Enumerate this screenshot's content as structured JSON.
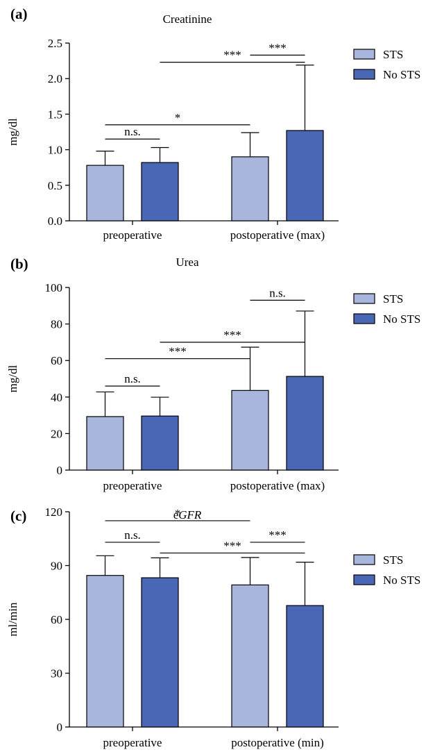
{
  "chart_data": [
    {
      "type": "bar",
      "panel_label": "(a)",
      "title": "Creatinine",
      "ylabel": "mg/dl",
      "ylim": [
        0,
        2.5
      ],
      "yticks": [
        "0.0",
        "0.5",
        "1.0",
        "1.5",
        "2.0",
        "2.5"
      ],
      "categories": [
        "preoperative",
        "postoperative (max)"
      ],
      "series": [
        {
          "name": "STS",
          "color": "#a8b6de",
          "values": [
            0.78,
            0.9
          ],
          "error": [
            0.2,
            0.34
          ]
        },
        {
          "name": "No STS",
          "color": "#4a67b6",
          "values": [
            0.82,
            1.27
          ],
          "error": [
            0.21,
            0.92
          ]
        }
      ],
      "legend_position": "top-right",
      "annotations": [
        {
          "label": "n.s.",
          "from": [
            0,
            0
          ],
          "to": [
            0,
            1
          ],
          "y": 1.15
        },
        {
          "label": "*",
          "from": [
            0,
            0
          ],
          "to": [
            1,
            0
          ],
          "y": 1.35
        },
        {
          "label": "***",
          "from": [
            0,
            1
          ],
          "to": [
            1,
            1
          ],
          "y": 2.23
        },
        {
          "label": "***",
          "from": [
            1,
            0
          ],
          "to": [
            1,
            1
          ],
          "y": 2.33
        }
      ]
    },
    {
      "type": "bar",
      "panel_label": "(b)",
      "title": "Urea",
      "ylabel": "mg/dl",
      "ylim": [
        0,
        100
      ],
      "yticks": [
        "0",
        "20",
        "40",
        "60",
        "80",
        "100"
      ],
      "categories": [
        "preoperative",
        "postoperative (max)"
      ],
      "series": [
        {
          "name": "STS",
          "color": "#a8b6de",
          "values": [
            29.3,
            43.6
          ],
          "error": [
            13.5,
            23.7
          ]
        },
        {
          "name": "No STS",
          "color": "#4a67b6",
          "values": [
            29.6,
            51.3
          ],
          "error": [
            10.3,
            35.8
          ]
        }
      ],
      "legend_position": "top-right",
      "annotations": [
        {
          "label": "n.s.",
          "from": [
            0,
            0
          ],
          "to": [
            0,
            1
          ],
          "y": 46
        },
        {
          "label": "***",
          "from": [
            0,
            0
          ],
          "to": [
            1,
            0
          ],
          "y": 61
        },
        {
          "label": "***",
          "from": [
            0,
            1
          ],
          "to": [
            1,
            1
          ],
          "y": 70
        },
        {
          "label": "n.s.",
          "from": [
            1,
            0
          ],
          "to": [
            1,
            1
          ],
          "y": 93
        }
      ]
    },
    {
      "type": "bar",
      "panel_label": "(c)",
      "title_prefix": "e",
      "title": "GFR",
      "ylabel": "ml/min",
      "ylim": [
        0,
        120
      ],
      "yticks": [
        "0",
        "30",
        "60",
        "90",
        "120"
      ],
      "categories": [
        "preoperative",
        "postoperative (min)"
      ],
      "series": [
        {
          "name": "STS",
          "color": "#a8b6de",
          "values": [
            84.5,
            79.2
          ],
          "error": [
            11.0,
            15.3
          ]
        },
        {
          "name": "No STS",
          "color": "#4a67b6",
          "values": [
            83.2,
            67.7
          ],
          "error": [
            11.1,
            24.2
          ]
        }
      ],
      "legend_position": "top-right",
      "annotations": [
        {
          "label": "*",
          "from": [
            0,
            0
          ],
          "to": [
            1,
            0
          ],
          "y": 115
        },
        {
          "label": "n.s.",
          "from": [
            0,
            0
          ],
          "to": [
            0,
            1
          ],
          "y": 103
        },
        {
          "label": "***",
          "from": [
            1,
            0
          ],
          "to": [
            1,
            1
          ],
          "y": 103
        },
        {
          "label": "***",
          "from": [
            0,
            1
          ],
          "to": [
            1,
            1
          ],
          "y": 97
        }
      ]
    }
  ]
}
